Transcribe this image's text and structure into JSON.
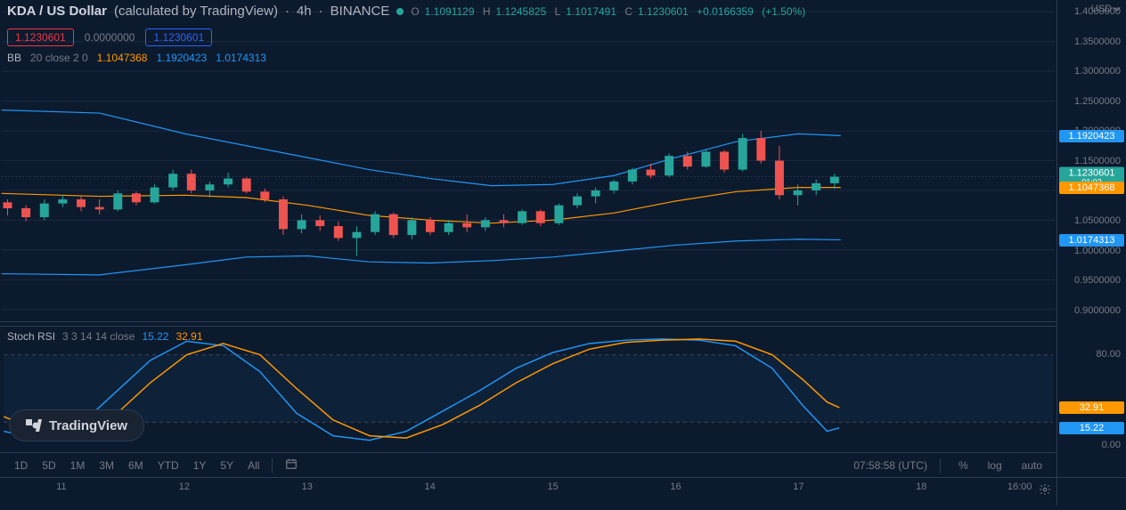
{
  "header": {
    "symbol": "KDA / US Dollar",
    "provider": "(calculated by TradingView)",
    "interval": "4h",
    "exchange": "BINANCE",
    "ohlc": {
      "O": "1.1091129",
      "H": "1.1245825",
      "L": "1.1017491",
      "C": "1.1230601",
      "chg": "+0.0166359",
      "pct": "(+1.50%)"
    }
  },
  "row2": {
    "pill_red": "1.1230601",
    "neutral": "0.0000000",
    "pill_blue": "1.1230601"
  },
  "bb": {
    "name": "BB",
    "params": "20 close 2 0",
    "mid": "1.1047368",
    "upper": "1.1920423",
    "lower": "1.0174313"
  },
  "y_axis": {
    "currency": "USD",
    "ticks": [
      {
        "v": 1.4,
        "label": "1.4000000"
      },
      {
        "v": 1.35,
        "label": "1.3500000"
      },
      {
        "v": 1.3,
        "label": "1.3000000"
      },
      {
        "v": 1.25,
        "label": "1.2500000"
      },
      {
        "v": 1.2,
        "label": "1.2000000"
      },
      {
        "v": 1.15,
        "label": "1.1500000"
      },
      {
        "v": 1.1,
        "label": "1.1000000"
      },
      {
        "v": 1.05,
        "label": "1.0500000"
      },
      {
        "v": 1.0,
        "label": "1.0000000"
      },
      {
        "v": 0.95,
        "label": "0.9500000"
      },
      {
        "v": 0.9,
        "label": "0.9000000"
      }
    ],
    "tags": {
      "upper": {
        "v": 1.1920423,
        "label": "1.1920423",
        "color": "blue"
      },
      "price": {
        "v": 1.1230601,
        "label": "1.1230601",
        "sub": "01:02",
        "color": "green"
      },
      "mid": {
        "v": 1.1047368,
        "label": "1.1047368",
        "color": "orange"
      },
      "lower": {
        "v": 1.0174313,
        "label": "1.0174313",
        "color": "blue"
      }
    },
    "range": {
      "min": 0.88,
      "max": 1.42
    }
  },
  "x_axis": {
    "ticks": [
      {
        "t": 10.5,
        "label": "11"
      },
      {
        "t": 11.5,
        "label": "12"
      },
      {
        "t": 12.5,
        "label": "13"
      },
      {
        "t": 13.5,
        "label": "14"
      },
      {
        "t": 14.5,
        "label": "15"
      },
      {
        "t": 15.5,
        "label": "16"
      },
      {
        "t": 16.5,
        "label": "17"
      },
      {
        "t": 17.5,
        "label": "18"
      },
      {
        "t": 18.3,
        "label": "16:00"
      }
    ],
    "range": {
      "min": 10.0,
      "max": 18.6
    }
  },
  "candles": [
    {
      "t": 10.05,
      "o": 1.08,
      "h": 1.085,
      "l": 1.058,
      "c": 1.07
    },
    {
      "t": 10.2,
      "o": 1.07,
      "h": 1.075,
      "l": 1.048,
      "c": 1.055
    },
    {
      "t": 10.35,
      "o": 1.055,
      "h": 1.085,
      "l": 1.05,
      "c": 1.078
    },
    {
      "t": 10.5,
      "o": 1.078,
      "h": 1.092,
      "l": 1.072,
      "c": 1.085
    },
    {
      "t": 10.65,
      "o": 1.085,
      "h": 1.09,
      "l": 1.065,
      "c": 1.072
    },
    {
      "t": 10.8,
      "o": 1.072,
      "h": 1.085,
      "l": 1.06,
      "c": 1.068
    },
    {
      "t": 10.95,
      "o": 1.068,
      "h": 1.1,
      "l": 1.065,
      "c": 1.095
    },
    {
      "t": 11.1,
      "o": 1.095,
      "h": 1.098,
      "l": 1.075,
      "c": 1.08
    },
    {
      "t": 11.25,
      "o": 1.08,
      "h": 1.11,
      "l": 1.078,
      "c": 1.105
    },
    {
      "t": 11.4,
      "o": 1.105,
      "h": 1.135,
      "l": 1.1,
      "c": 1.128
    },
    {
      "t": 11.55,
      "o": 1.128,
      "h": 1.135,
      "l": 1.095,
      "c": 1.1
    },
    {
      "t": 11.7,
      "o": 1.1,
      "h": 1.115,
      "l": 1.088,
      "c": 1.11
    },
    {
      "t": 11.85,
      "o": 1.11,
      "h": 1.13,
      "l": 1.105,
      "c": 1.12
    },
    {
      "t": 12.0,
      "o": 1.12,
      "h": 1.122,
      "l": 1.095,
      "c": 1.098
    },
    {
      "t": 12.15,
      "o": 1.098,
      "h": 1.103,
      "l": 1.08,
      "c": 1.085
    },
    {
      "t": 12.3,
      "o": 1.085,
      "h": 1.09,
      "l": 1.025,
      "c": 1.035
    },
    {
      "t": 12.45,
      "o": 1.035,
      "h": 1.06,
      "l": 1.028,
      "c": 1.05
    },
    {
      "t": 12.6,
      "o": 1.05,
      "h": 1.058,
      "l": 1.032,
      "c": 1.04
    },
    {
      "t": 12.75,
      "o": 1.04,
      "h": 1.048,
      "l": 1.015,
      "c": 1.02
    },
    {
      "t": 12.9,
      "o": 1.02,
      "h": 1.04,
      "l": 0.99,
      "c": 1.03
    },
    {
      "t": 13.05,
      "o": 1.03,
      "h": 1.065,
      "l": 1.025,
      "c": 1.06
    },
    {
      "t": 13.2,
      "o": 1.06,
      "h": 1.063,
      "l": 1.02,
      "c": 1.025
    },
    {
      "t": 13.35,
      "o": 1.025,
      "h": 1.055,
      "l": 1.018,
      "c": 1.05
    },
    {
      "t": 13.5,
      "o": 1.05,
      "h": 1.055,
      "l": 1.025,
      "c": 1.03
    },
    {
      "t": 13.65,
      "o": 1.03,
      "h": 1.05,
      "l": 1.025,
      "c": 1.045
    },
    {
      "t": 13.8,
      "o": 1.045,
      "h": 1.06,
      "l": 1.03,
      "c": 1.038
    },
    {
      "t": 13.95,
      "o": 1.038,
      "h": 1.055,
      "l": 1.032,
      "c": 1.05
    },
    {
      "t": 14.1,
      "o": 1.05,
      "h": 1.06,
      "l": 1.038,
      "c": 1.045
    },
    {
      "t": 14.25,
      "o": 1.045,
      "h": 1.068,
      "l": 1.042,
      "c": 1.065
    },
    {
      "t": 14.4,
      "o": 1.065,
      "h": 1.068,
      "l": 1.04,
      "c": 1.045
    },
    {
      "t": 14.55,
      "o": 1.045,
      "h": 1.078,
      "l": 1.042,
      "c": 1.075
    },
    {
      "t": 14.7,
      "o": 1.075,
      "h": 1.095,
      "l": 1.07,
      "c": 1.09
    },
    {
      "t": 14.85,
      "o": 1.09,
      "h": 1.105,
      "l": 1.078,
      "c": 1.1
    },
    {
      "t": 15.0,
      "o": 1.1,
      "h": 1.118,
      "l": 1.095,
      "c": 1.115
    },
    {
      "t": 15.15,
      "o": 1.115,
      "h": 1.138,
      "l": 1.11,
      "c": 1.135
    },
    {
      "t": 15.3,
      "o": 1.135,
      "h": 1.145,
      "l": 1.12,
      "c": 1.125
    },
    {
      "t": 15.45,
      "o": 1.125,
      "h": 1.162,
      "l": 1.122,
      "c": 1.158
    },
    {
      "t": 15.6,
      "o": 1.158,
      "h": 1.165,
      "l": 1.135,
      "c": 1.14
    },
    {
      "t": 15.75,
      "o": 1.14,
      "h": 1.17,
      "l": 1.138,
      "c": 1.165
    },
    {
      "t": 15.9,
      "o": 1.165,
      "h": 1.168,
      "l": 1.13,
      "c": 1.135
    },
    {
      "t": 16.05,
      "o": 1.135,
      "h": 1.195,
      "l": 1.132,
      "c": 1.188
    },
    {
      "t": 16.2,
      "o": 1.188,
      "h": 1.2,
      "l": 1.145,
      "c": 1.15
    },
    {
      "t": 16.35,
      "o": 1.15,
      "h": 1.175,
      "l": 1.085,
      "c": 1.092
    },
    {
      "t": 16.5,
      "o": 1.092,
      "h": 1.11,
      "l": 1.075,
      "c": 1.1
    },
    {
      "t": 16.65,
      "o": 1.1,
      "h": 1.118,
      "l": 1.092,
      "c": 1.112
    },
    {
      "t": 16.8,
      "o": 1.112,
      "h": 1.128,
      "l": 1.102,
      "c": 1.123
    }
  ],
  "bb_lines": {
    "upper": [
      {
        "t": 10.0,
        "v": 1.235
      },
      {
        "t": 10.8,
        "v": 1.23
      },
      {
        "t": 11.5,
        "v": 1.195
      },
      {
        "t": 12.0,
        "v": 1.175
      },
      {
        "t": 12.5,
        "v": 1.155
      },
      {
        "t": 13.0,
        "v": 1.135
      },
      {
        "t": 13.5,
        "v": 1.12
      },
      {
        "t": 14.0,
        "v": 1.108
      },
      {
        "t": 14.5,
        "v": 1.11
      },
      {
        "t": 15.0,
        "v": 1.125
      },
      {
        "t": 15.5,
        "v": 1.155
      },
      {
        "t": 16.0,
        "v": 1.182
      },
      {
        "t": 16.5,
        "v": 1.195
      },
      {
        "t": 16.85,
        "v": 1.192
      }
    ],
    "mid": [
      {
        "t": 10.0,
        "v": 1.095
      },
      {
        "t": 10.8,
        "v": 1.09
      },
      {
        "t": 11.5,
        "v": 1.092
      },
      {
        "t": 12.0,
        "v": 1.088
      },
      {
        "t": 12.5,
        "v": 1.075
      },
      {
        "t": 13.0,
        "v": 1.058
      },
      {
        "t": 13.5,
        "v": 1.05
      },
      {
        "t": 14.0,
        "v": 1.045
      },
      {
        "t": 14.5,
        "v": 1.05
      },
      {
        "t": 15.0,
        "v": 1.062
      },
      {
        "t": 15.5,
        "v": 1.082
      },
      {
        "t": 16.0,
        "v": 1.098
      },
      {
        "t": 16.5,
        "v": 1.105
      },
      {
        "t": 16.85,
        "v": 1.105
      }
    ],
    "lower": [
      {
        "t": 10.0,
        "v": 0.96
      },
      {
        "t": 10.8,
        "v": 0.958
      },
      {
        "t": 11.5,
        "v": 0.975
      },
      {
        "t": 12.0,
        "v": 0.988
      },
      {
        "t": 12.5,
        "v": 0.99
      },
      {
        "t": 13.0,
        "v": 0.98
      },
      {
        "t": 13.5,
        "v": 0.978
      },
      {
        "t": 14.0,
        "v": 0.982
      },
      {
        "t": 14.5,
        "v": 0.988
      },
      {
        "t": 15.0,
        "v": 0.998
      },
      {
        "t": 15.5,
        "v": 1.008
      },
      {
        "t": 16.0,
        "v": 1.015
      },
      {
        "t": 16.5,
        "v": 1.018
      },
      {
        "t": 16.85,
        "v": 1.017
      }
    ]
  },
  "rsi": {
    "name": "Stoch RSI",
    "params": "3 3 14 14 close",
    "k_label": "15.22",
    "d_label": "32.91",
    "range": {
      "min": -5,
      "max": 105
    },
    "bands": [
      80,
      20
    ],
    "k": [
      {
        "t": 10.0,
        "v": 12
      },
      {
        "t": 10.3,
        "v": 5
      },
      {
        "t": 10.6,
        "v": 15
      },
      {
        "t": 10.9,
        "v": 45
      },
      {
        "t": 11.2,
        "v": 75
      },
      {
        "t": 11.5,
        "v": 92
      },
      {
        "t": 11.8,
        "v": 88
      },
      {
        "t": 12.1,
        "v": 65
      },
      {
        "t": 12.4,
        "v": 28
      },
      {
        "t": 12.7,
        "v": 8
      },
      {
        "t": 13.0,
        "v": 4
      },
      {
        "t": 13.3,
        "v": 12
      },
      {
        "t": 13.6,
        "v": 30
      },
      {
        "t": 13.9,
        "v": 48
      },
      {
        "t": 14.2,
        "v": 68
      },
      {
        "t": 14.5,
        "v": 82
      },
      {
        "t": 14.8,
        "v": 90
      },
      {
        "t": 15.1,
        "v": 93
      },
      {
        "t": 15.4,
        "v": 94
      },
      {
        "t": 15.7,
        "v": 93
      },
      {
        "t": 16.0,
        "v": 88
      },
      {
        "t": 16.3,
        "v": 68
      },
      {
        "t": 16.55,
        "v": 35
      },
      {
        "t": 16.75,
        "v": 12
      },
      {
        "t": 16.85,
        "v": 15
      }
    ],
    "d": [
      {
        "t": 10.0,
        "v": 25
      },
      {
        "t": 10.3,
        "v": 12
      },
      {
        "t": 10.6,
        "v": 8
      },
      {
        "t": 10.9,
        "v": 25
      },
      {
        "t": 11.2,
        "v": 55
      },
      {
        "t": 11.5,
        "v": 80
      },
      {
        "t": 11.8,
        "v": 90
      },
      {
        "t": 12.1,
        "v": 80
      },
      {
        "t": 12.4,
        "v": 50
      },
      {
        "t": 12.7,
        "v": 22
      },
      {
        "t": 13.0,
        "v": 8
      },
      {
        "t": 13.3,
        "v": 6
      },
      {
        "t": 13.6,
        "v": 18
      },
      {
        "t": 13.9,
        "v": 35
      },
      {
        "t": 14.2,
        "v": 55
      },
      {
        "t": 14.5,
        "v": 72
      },
      {
        "t": 14.8,
        "v": 85
      },
      {
        "t": 15.1,
        "v": 91
      },
      {
        "t": 15.4,
        "v": 93
      },
      {
        "t": 15.7,
        "v": 94
      },
      {
        "t": 16.0,
        "v": 92
      },
      {
        "t": 16.3,
        "v": 80
      },
      {
        "t": 16.55,
        "v": 58
      },
      {
        "t": 16.75,
        "v": 38
      },
      {
        "t": 16.85,
        "v": 33
      }
    ],
    "tags": {
      "d": {
        "label": "32.91",
        "v": 33,
        "color": "orange"
      },
      "k": {
        "label": "15.22",
        "v": 15,
        "color": "blue"
      }
    },
    "side_ticks": [
      {
        "v": 80,
        "label": "80.00"
      },
      {
        "v": 0,
        "label": "0.00"
      }
    ]
  },
  "intervals": {
    "buttons": [
      "1D",
      "5D",
      "1M",
      "3M",
      "6M",
      "YTD",
      "1Y",
      "5Y",
      "All"
    ],
    "clock": "07:58:58 (UTC)",
    "right": [
      "%",
      "log",
      "auto"
    ]
  },
  "tv": "TradingView",
  "colors": {
    "bg": "#0c1a2e",
    "up": "#26a69a",
    "dn": "#ef5350",
    "blue": "#2196f3",
    "orange": "#ff9800",
    "grid": "#1a2840"
  }
}
